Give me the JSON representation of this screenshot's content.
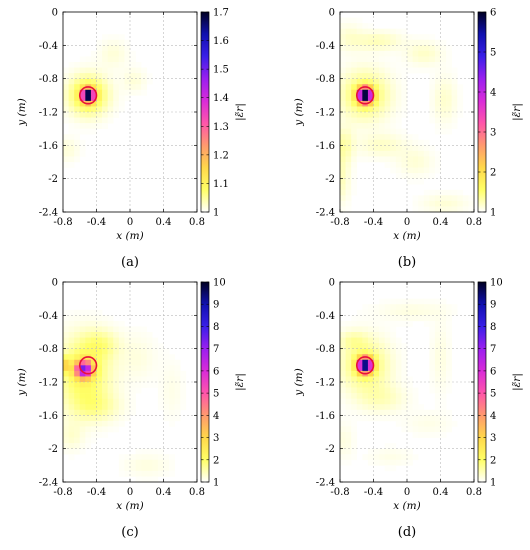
{
  "colors": {
    "cmap": [
      "#ffffff",
      "#ffff66",
      "#ffd84a",
      "#ff9a6e",
      "#ff55aa",
      "#d92bd9",
      "#9a1ff0",
      "#3a1fe8",
      "#1010b0",
      "#000022"
    ],
    "ring": "#e8103a"
  },
  "chart_data": [
    {
      "type": "heatmap",
      "panel_label": "(a)",
      "xlabel": "x (m)",
      "ylabel": "y (m)",
      "xlim": [
        -0.8,
        0.8
      ],
      "ylim": [
        -2.4,
        0
      ],
      "xticks": [
        -0.8,
        -0.4,
        0,
        0.4,
        0.8
      ],
      "yticks": [
        0,
        -0.4,
        -0.8,
        -1.2,
        -1.6,
        -2,
        -2.4
      ],
      "xtick_labels": [
        "-0.8",
        "-0.4",
        "0",
        "0.4",
        "0.8"
      ],
      "ytick_labels": [
        "0",
        "-0.4",
        "-0.8",
        "-1.2",
        "-1.6",
        "-2",
        "-2.4"
      ],
      "colorbar": {
        "label": "|ε̃r|",
        "ticks": [
          "1",
          "1.1",
          "1.2",
          "1.3",
          "1.4",
          "1.5",
          "1.6",
          "1.7"
        ],
        "min": 1,
        "max": 1.7
      },
      "target": {
        "x": -0.5,
        "y": -1.0,
        "radius_m": 0.1
      },
      "blobs": [
        {
          "x": -0.5,
          "y": -1.0,
          "sx": 0.05,
          "sy": 0.05,
          "amp": 0.7
        },
        {
          "x": -0.5,
          "y": -1.0,
          "sx": 0.16,
          "sy": 0.16,
          "amp": 0.12
        },
        {
          "x": -0.2,
          "y": -0.5,
          "sx": 0.12,
          "sy": 0.12,
          "amp": 0.02
        },
        {
          "x": 0.05,
          "y": -0.82,
          "sx": 0.1,
          "sy": 0.1,
          "amp": 0.02
        },
        {
          "x": -0.75,
          "y": -1.65,
          "sx": 0.1,
          "sy": 0.1,
          "amp": 0.02
        }
      ]
    },
    {
      "type": "heatmap",
      "panel_label": "(b)",
      "xlabel": "x (m)",
      "ylabel": "y (m)",
      "xlim": [
        -0.8,
        0.8
      ],
      "ylim": [
        -2.4,
        0
      ],
      "xticks": [
        -0.8,
        -0.4,
        0,
        0.4,
        0.8
      ],
      "yticks": [
        0,
        -0.4,
        -0.8,
        -1.2,
        -1.6,
        -2,
        -2.4
      ],
      "xtick_labels": [
        "-0.8",
        "-0.4",
        "0",
        "0.4",
        "0.8"
      ],
      "ytick_labels": [
        "0",
        "-0.4",
        "-0.8",
        "-1.2",
        "-1.6",
        "-2",
        "-2.4"
      ],
      "colorbar": {
        "label": "|ε̃r|",
        "ticks": [
          "1",
          "2",
          "3",
          "4",
          "5",
          "6"
        ],
        "min": 1,
        "max": 6
      },
      "target": {
        "x": -0.5,
        "y": -1.0,
        "radius_m": 0.1
      },
      "blobs": [
        {
          "x": -0.5,
          "y": -1.0,
          "sx": 0.06,
          "sy": 0.06,
          "amp": 5.0
        },
        {
          "x": -0.5,
          "y": -1.0,
          "sx": 0.2,
          "sy": 0.2,
          "amp": 0.6
        },
        {
          "x": -0.35,
          "y": -0.35,
          "sx": 0.2,
          "sy": 0.08,
          "amp": 0.25
        },
        {
          "x": 0.2,
          "y": -0.5,
          "sx": 0.15,
          "sy": 0.1,
          "amp": 0.2
        },
        {
          "x": 0.45,
          "y": -1.05,
          "sx": 0.1,
          "sy": 0.2,
          "amp": 0.18
        },
        {
          "x": -0.75,
          "y": -1.6,
          "sx": 0.08,
          "sy": 0.15,
          "amp": 0.3
        },
        {
          "x": -0.3,
          "y": -1.6,
          "sx": 0.2,
          "sy": 0.1,
          "amp": 0.2
        },
        {
          "x": 0.1,
          "y": -1.8,
          "sx": 0.15,
          "sy": 0.12,
          "amp": 0.15
        },
        {
          "x": -0.8,
          "y": -2.0,
          "sx": 0.08,
          "sy": 0.2,
          "amp": 0.25
        },
        {
          "x": 0.45,
          "y": -2.3,
          "sx": 0.2,
          "sy": 0.08,
          "amp": 0.15
        },
        {
          "x": -0.7,
          "y": -0.3,
          "sx": 0.12,
          "sy": 0.12,
          "amp": 0.15
        }
      ]
    },
    {
      "type": "heatmap",
      "panel_label": "(c)",
      "xlabel": "x (m)",
      "ylabel": "y (m)",
      "xlim": [
        -0.8,
        0.8
      ],
      "ylim": [
        -2.4,
        0
      ],
      "xticks": [
        -0.8,
        -0.4,
        0,
        0.4,
        0.8
      ],
      "yticks": [
        0,
        -0.4,
        -0.8,
        -1.2,
        -1.6,
        -2,
        -2.4
      ],
      "xtick_labels": [
        "-0.8",
        "-0.4",
        "0",
        "0.4",
        "0.8"
      ],
      "ytick_labels": [
        "0",
        "-0.4",
        "-0.8",
        "-1.2",
        "-1.6",
        "-2",
        "-2.4"
      ],
      "colorbar": {
        "label": "|ε̃r|",
        "ticks": [
          "1",
          "2",
          "3",
          "4",
          "5",
          "6",
          "7",
          "8",
          "9",
          "10"
        ],
        "min": 1,
        "max": 10
      },
      "target": {
        "x": -0.5,
        "y": -1.0,
        "radius_m": 0.1
      },
      "blobs": [
        {
          "x": -0.55,
          "y": -1.05,
          "sx": 0.07,
          "sy": 0.07,
          "amp": 5.5
        },
        {
          "x": -0.55,
          "y": -1.1,
          "sx": 0.22,
          "sy": 0.3,
          "amp": 1.2
        },
        {
          "x": -0.35,
          "y": -0.75,
          "sx": 0.15,
          "sy": 0.12,
          "amp": 0.6
        },
        {
          "x": -0.78,
          "y": -1.0,
          "sx": 0.05,
          "sy": 0.06,
          "amp": 1.5
        },
        {
          "x": -0.4,
          "y": -1.5,
          "sx": 0.2,
          "sy": 0.12,
          "amp": 0.5
        },
        {
          "x": 0.1,
          "y": -0.9,
          "sx": 0.15,
          "sy": 0.2,
          "amp": 0.2
        },
        {
          "x": -0.7,
          "y": -1.85,
          "sx": 0.1,
          "sy": 0.12,
          "amp": 0.3
        },
        {
          "x": 0.2,
          "y": -2.2,
          "sx": 0.2,
          "sy": 0.1,
          "amp": 0.2
        },
        {
          "x": 0.5,
          "y": -1.3,
          "sx": 0.1,
          "sy": 0.25,
          "amp": 0.15
        }
      ]
    },
    {
      "type": "heatmap",
      "panel_label": "(d)",
      "xlabel": "x (m)",
      "ylabel": "y (m)",
      "xlim": [
        -0.8,
        0.8
      ],
      "ylim": [
        -2.4,
        0
      ],
      "xticks": [
        -0.8,
        -0.4,
        0,
        0.4,
        0.8
      ],
      "yticks": [
        0,
        -0.4,
        -0.8,
        -1.2,
        -1.6,
        -2,
        -2.4
      ],
      "xtick_labels": [
        "-0.8",
        "-0.4",
        "0",
        "0.4",
        "0.8"
      ],
      "ytick_labels": [
        "0",
        "-0.4",
        "-0.8",
        "-1.2",
        "-1.6",
        "-2",
        "-2.4"
      ],
      "colorbar": {
        "label": "|ε̃r|",
        "ticks": [
          "1",
          "2",
          "3",
          "4",
          "5",
          "6",
          "7",
          "8",
          "9",
          "10"
        ],
        "min": 1,
        "max": 10
      },
      "target": {
        "x": -0.5,
        "y": -1.0,
        "radius_m": 0.1
      },
      "blobs": [
        {
          "x": -0.5,
          "y": -1.0,
          "sx": 0.06,
          "sy": 0.06,
          "amp": 8.5
        },
        {
          "x": -0.5,
          "y": -1.0,
          "sx": 0.2,
          "sy": 0.22,
          "amp": 1.0
        },
        {
          "x": -0.65,
          "y": -0.7,
          "sx": 0.12,
          "sy": 0.08,
          "amp": 0.4
        },
        {
          "x": -0.3,
          "y": -1.4,
          "sx": 0.2,
          "sy": 0.12,
          "amp": 0.4
        },
        {
          "x": 0.05,
          "y": -0.35,
          "sx": 0.3,
          "sy": 0.08,
          "amp": 0.2
        },
        {
          "x": 0.4,
          "y": -0.9,
          "sx": 0.08,
          "sy": 0.3,
          "amp": 0.2
        },
        {
          "x": 0.25,
          "y": -1.7,
          "sx": 0.2,
          "sy": 0.1,
          "amp": 0.15
        },
        {
          "x": -0.75,
          "y": -1.9,
          "sx": 0.08,
          "sy": 0.15,
          "amp": 0.2
        },
        {
          "x": -0.2,
          "y": -2.1,
          "sx": 0.2,
          "sy": 0.08,
          "amp": 0.15
        }
      ]
    }
  ]
}
